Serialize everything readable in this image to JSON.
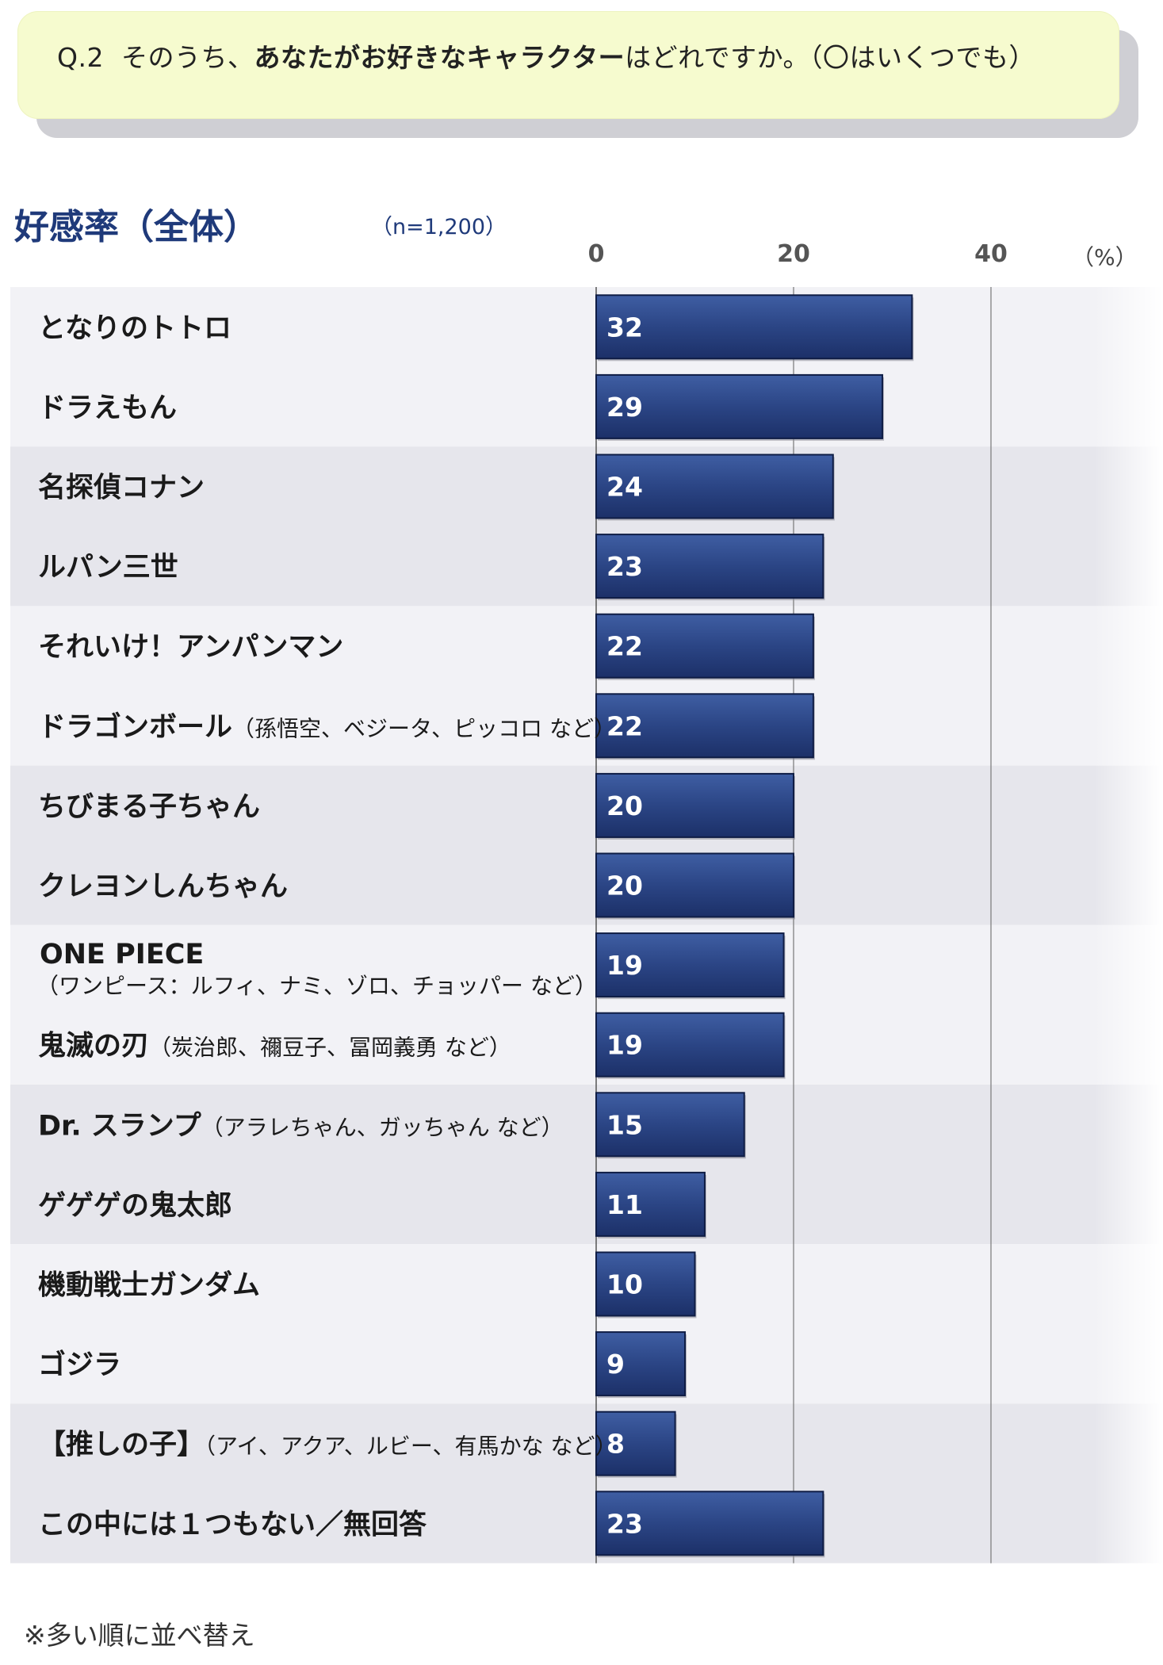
{
  "question": {
    "prefix": "Q.2",
    "part1": "そのうち、",
    "emphasis": "あなたがお好きなキャラクター",
    "part2": "はどれですか。（〇はいくつでも）"
  },
  "footnote": "※多い順に並べ替え",
  "colors": {
    "bar_fill": "#2d4a8a",
    "bar_border": "#0f1d45",
    "band_dark": "#e6e6ec",
    "band_light": "#f2f2f6",
    "question_bg": "#f6fbcf",
    "title": "#1f3a7a"
  },
  "chart_data": {
    "type": "bar",
    "orientation": "horizontal",
    "title": "好感率（全体）",
    "sample_size": "（n=1,200）",
    "unit": "（%）",
    "xlim": [
      0,
      40
    ],
    "ticks": [
      "0",
      "20",
      "40"
    ],
    "grid": true,
    "categories": [
      {
        "main": "となりのトトロ",
        "sub": "",
        "sub2": ""
      },
      {
        "main": "ドラえもん",
        "sub": "",
        "sub2": ""
      },
      {
        "main": "名探偵コナン",
        "sub": "",
        "sub2": ""
      },
      {
        "main": "ルパン三世",
        "sub": "",
        "sub2": ""
      },
      {
        "main": "それいけ！アンパンマン",
        "sub": "",
        "sub2": ""
      },
      {
        "main": "ドラゴンボール",
        "sub": "（孫悟空、ベジータ、ピッコロ など）",
        "sub2": ""
      },
      {
        "main": "ちびまる子ちゃん",
        "sub": "",
        "sub2": ""
      },
      {
        "main": "クレヨンしんちゃん",
        "sub": "",
        "sub2": ""
      },
      {
        "main": "ONE PIECE",
        "sub": "",
        "sub2": "（ワンピース：ルフィ、ナミ、ゾロ、チョッパー など）"
      },
      {
        "main": "鬼滅の刃",
        "sub": "（炭治郎、禰豆子、冨岡義勇 など）",
        "sub2": ""
      },
      {
        "main": "Dr. スランプ",
        "sub": "（アラレちゃん、ガッちゃん など）",
        "sub2": ""
      },
      {
        "main": "ゲゲゲの鬼太郎",
        "sub": "",
        "sub2": ""
      },
      {
        "main": "機動戦士ガンダム",
        "sub": "",
        "sub2": ""
      },
      {
        "main": "ゴジラ",
        "sub": "",
        "sub2": ""
      },
      {
        "main": "【推しの子】",
        "sub": "（アイ、アクア、ルビー、有馬かな など）",
        "sub2": ""
      },
      {
        "main": "この中には１つもない／無回答",
        "sub": "",
        "sub2": ""
      }
    ],
    "values": [
      32,
      29,
      24,
      23,
      22,
      22,
      20,
      20,
      19,
      19,
      15,
      11,
      10,
      9,
      8,
      23
    ],
    "value_labels": [
      "32",
      "29",
      "24",
      "23",
      "22",
      "22",
      "20",
      "20",
      "19",
      "19",
      "15",
      "11",
      "10",
      "9",
      "8",
      "23"
    ]
  }
}
